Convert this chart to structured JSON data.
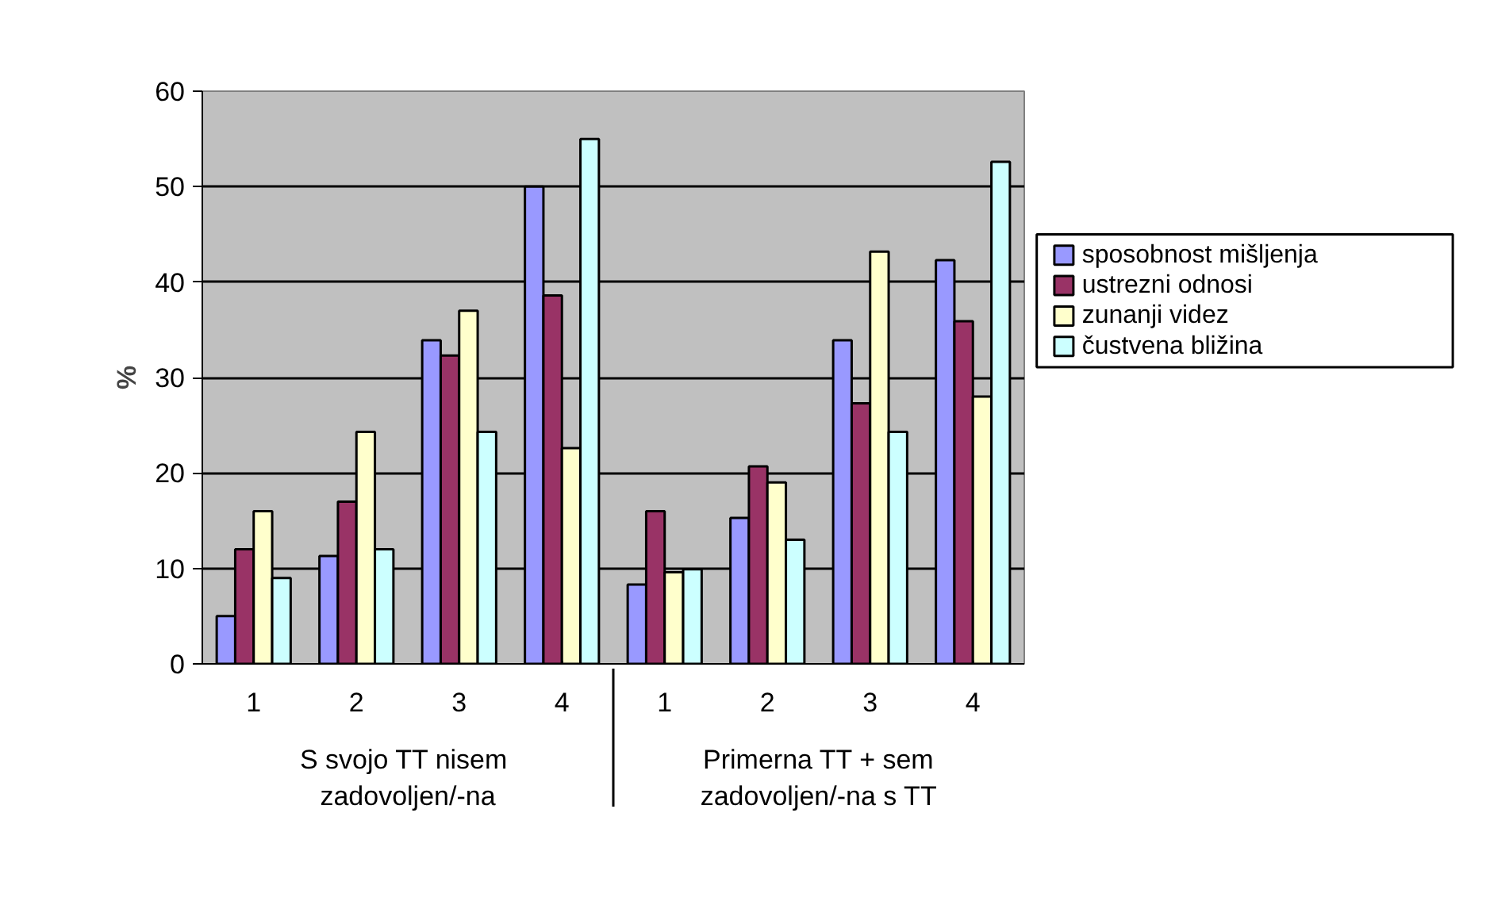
{
  "chart_data": {
    "type": "bar",
    "ylabel": "%",
    "categories": [
      "1",
      "2",
      "3",
      "4",
      "1",
      "2",
      "3",
      "4"
    ],
    "annotations": [
      "S svojo  TT nisem\nzadovoljen/-na",
      "Primerna TT + sem\nzadovoljen/-na s TT"
    ],
    "series": [
      {
        "name": "sposobnost mišljenja",
        "color": "#9999ff",
        "values": [
          5,
          11.3,
          33.9,
          50,
          8.3,
          15.3,
          33.9,
          42.3
        ]
      },
      {
        "name": "ustrezni odnosi",
        "color": "#993366",
        "values": [
          12,
          17,
          32.3,
          38.6,
          16,
          20.7,
          27.3,
          35.9
        ]
      },
      {
        "name": "zunanji videz",
        "color": "#ffffcc",
        "values": [
          16,
          24.3,
          37,
          22.6,
          9.6,
          19,
          43.2,
          28
        ]
      },
      {
        "name": "čustvena bližina",
        "color": "#ccffff",
        "values": [
          9,
          12,
          24.3,
          55,
          9.9,
          13,
          24.3,
          52.6
        ]
      }
    ],
    "ylim": [
      0,
      60
    ],
    "yticks": [
      0,
      10,
      20,
      30,
      40,
      50,
      60
    ],
    "grid": "y",
    "legend": "right"
  }
}
